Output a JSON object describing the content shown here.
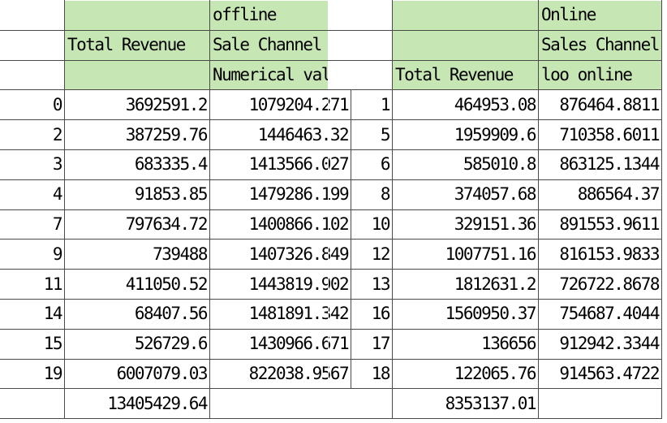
{
  "left_table": {
    "headers": {
      "r1_c3": "offline",
      "r2_c2": "Total Revenue",
      "r2_c3": "Sale Channel",
      "r3_c3": "Numerical value"
    },
    "rows": [
      [
        "0",
        "3692591.2",
        "1079204.271"
      ],
      [
        "2",
        "387259.76",
        "1446463.32"
      ],
      [
        "3",
        "683335.4",
        "1413566.027"
      ],
      [
        "4",
        "91853.85",
        "1479286.199"
      ],
      [
        "7",
        "797634.72",
        "1400866.102"
      ],
      [
        "9",
        "739488",
        "1407326.849"
      ],
      [
        "11",
        "411050.52",
        "1443819.902"
      ],
      [
        "14",
        "68407.56",
        "1481891.342"
      ],
      [
        "15",
        "526729.6",
        "1430966.671"
      ],
      [
        "19",
        "6007079.03",
        "822038.9567"
      ]
    ],
    "total": "13405429.64"
  },
  "right_table": {
    "headers": {
      "r1_c3": "Online",
      "r2_c3": "Sales Channel",
      "r3_c2": "Total Revenue",
      "r3_c3": "loo online"
    },
    "rows": [
      [
        "1",
        "464953.08",
        "876464.8811"
      ],
      [
        "5",
        "1959909.6",
        "710358.6011"
      ],
      [
        "6",
        "585010.8",
        "863125.1344"
      ],
      [
        "8",
        "374057.68",
        "886564.37"
      ],
      [
        "10",
        "329151.36",
        "891553.9611"
      ],
      [
        "12",
        "1007751.16",
        "816153.9833"
      ],
      [
        "13",
        "1812631.2",
        "726722.8678"
      ],
      [
        "16",
        "1560950.37",
        "754687.4044"
      ],
      [
        "17",
        "136656",
        "912942.3344"
      ],
      [
        "18",
        "122065.76",
        "914563.4722"
      ]
    ],
    "total": "8353137.01"
  },
  "colors": {
    "header_fill": "#c6e6b3",
    "grid_line": "#4a4a4a"
  }
}
